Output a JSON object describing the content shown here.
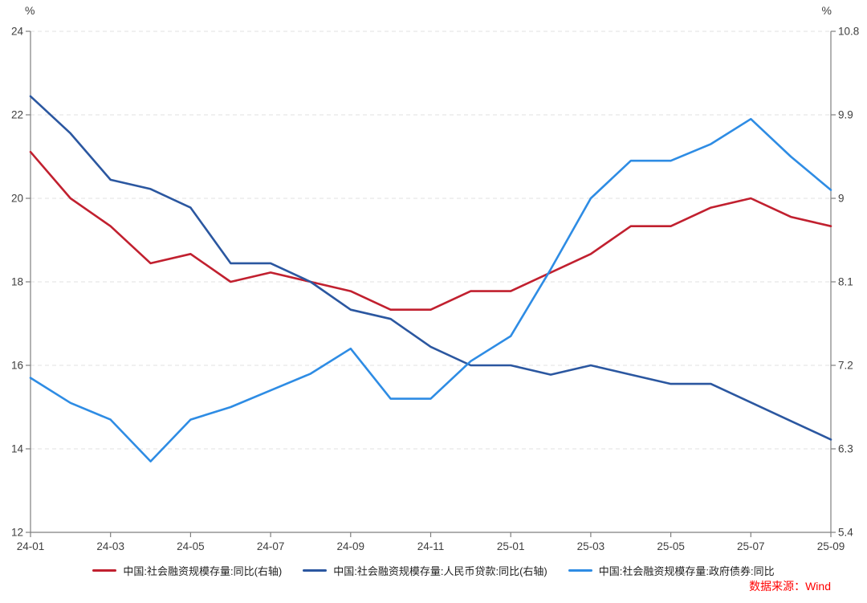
{
  "chart_data": {
    "type": "line",
    "x_categories": [
      "24-01",
      "24-02",
      "24-03",
      "24-04",
      "24-05",
      "24-06",
      "24-07",
      "24-08",
      "24-09",
      "24-10",
      "24-11",
      "24-12",
      "25-01",
      "25-02",
      "25-03",
      "25-04",
      "25-05",
      "25-06",
      "25-07",
      "25-08",
      "25-09"
    ],
    "x_tick_labels": [
      "24-01",
      "24-03",
      "24-05",
      "24-07",
      "24-09",
      "24-11",
      "25-01",
      "25-03",
      "25-05",
      "25-07",
      "25-09"
    ],
    "left_axis": {
      "unit": "%",
      "min": 12,
      "max": 24,
      "tick_labels": [
        "24",
        "22",
        "20",
        "18",
        "16",
        "14",
        "12"
      ]
    },
    "right_axis": {
      "unit": "%",
      "min": 5.4,
      "max": 10.8,
      "tick_labels": [
        "10.8",
        "9.9",
        "9",
        "8.1",
        "7.2",
        "6.3",
        "5.4"
      ]
    },
    "grid": {
      "show": true,
      "style": "dashed",
      "color": "#e1e1e1"
    },
    "axis_color": "#7f7f7f",
    "tick_text_color": "#3f3f3f",
    "legend_position": "bottom",
    "series": [
      {
        "name": "中国:社会融资规模存量:同比(右轴)",
        "axis": "right",
        "color": "#c1202f",
        "values": [
          9.5,
          9.0,
          8.7,
          8.3,
          8.4,
          8.1,
          8.2,
          8.1,
          8.0,
          7.8,
          7.8,
          8.0,
          8.0,
          8.2,
          8.4,
          8.7,
          8.7,
          8.9,
          9.0,
          8.8,
          8.7
        ]
      },
      {
        "name": "中国:社会融资规模存量:人民币贷款:同比(右轴)",
        "axis": "right",
        "color": "#2b57a0",
        "values": [
          10.1,
          9.7,
          9.2,
          9.1,
          8.9,
          8.3,
          8.3,
          8.1,
          7.8,
          7.7,
          7.4,
          7.2,
          7.2,
          7.1,
          7.2,
          7.1,
          7.0,
          7.0,
          6.8,
          6.6,
          6.4
        ]
      },
      {
        "name": "中国:社会融资规模存量:政府债券:同比",
        "axis": "left",
        "color": "#2e8ce4",
        "values": [
          15.7,
          15.1,
          14.7,
          13.7,
          14.7,
          15.0,
          15.4,
          15.8,
          16.4,
          15.2,
          15.2,
          16.1,
          16.7,
          18.3,
          20.0,
          20.9,
          20.9,
          21.3,
          21.9,
          21.0,
          20.2
        ]
      }
    ]
  },
  "footer": {
    "source_label": "数据来源：Wind",
    "source_color": "#ff0000"
  }
}
